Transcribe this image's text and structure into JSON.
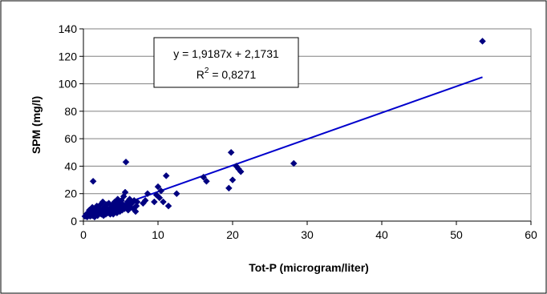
{
  "chart_data": {
    "type": "scatter",
    "xlabel": "Tot-P (microgram/liter)",
    "ylabel": "SPM (mg/l)",
    "xlim": [
      0,
      60
    ],
    "ylim": [
      0,
      140
    ],
    "xticks": [
      "0",
      "10",
      "20",
      "30",
      "40",
      "50",
      "60"
    ],
    "yticks": [
      "0",
      "20",
      "40",
      "60",
      "80",
      "100",
      "120",
      "140"
    ],
    "grid": "horizontal",
    "legend": "none",
    "marker_color": "#000080",
    "trendline_color": "#0000CC",
    "trendline": {
      "slope": 1.9187,
      "intercept": 2.1731,
      "equation_text": "y = 1,9187x + 2,1731",
      "r2_prefix": "R",
      "r2_sup": "2",
      "r2_suffix": " = 0,8271"
    },
    "points": [
      [
        0.2,
        3.5
      ],
      [
        0.4,
        5
      ],
      [
        0.5,
        3
      ],
      [
        0.6,
        6
      ],
      [
        0.7,
        4
      ],
      [
        0.8,
        8
      ],
      [
        0.9,
        3.5
      ],
      [
        1.0,
        5
      ],
      [
        1.1,
        7
      ],
      [
        1.2,
        4
      ],
      [
        1.2,
        10
      ],
      [
        1.3,
        29
      ],
      [
        1.4,
        6
      ],
      [
        1.5,
        3
      ],
      [
        1.6,
        8
      ],
      [
        1.7,
        5
      ],
      [
        1.8,
        11
      ],
      [
        1.9,
        4
      ],
      [
        2.0,
        7
      ],
      [
        2.1,
        9
      ],
      [
        2.2,
        6
      ],
      [
        2.3,
        12
      ],
      [
        2.4,
        5
      ],
      [
        2.5,
        8
      ],
      [
        2.6,
        14
      ],
      [
        2.7,
        4
      ],
      [
        2.8,
        10
      ],
      [
        2.9,
        7
      ],
      [
        3.0,
        5
      ],
      [
        3.1,
        12
      ],
      [
        3.2,
        9
      ],
      [
        3.3,
        6
      ],
      [
        3.4,
        13
      ],
      [
        3.5,
        8
      ],
      [
        3.6,
        5
      ],
      [
        3.7,
        10
      ],
      [
        3.8,
        7
      ],
      [
        3.9,
        12
      ],
      [
        4.0,
        5
      ],
      [
        4.1,
        9
      ],
      [
        4.2,
        14
      ],
      [
        4.3,
        7
      ],
      [
        4.4,
        11
      ],
      [
        4.5,
        6
      ],
      [
        4.6,
        16
      ],
      [
        4.7,
        9
      ],
      [
        4.8,
        13
      ],
      [
        4.9,
        7
      ],
      [
        5.0,
        10
      ],
      [
        5.1,
        15
      ],
      [
        5.2,
        8
      ],
      [
        5.3,
        12
      ],
      [
        5.4,
        18
      ],
      [
        5.5,
        9
      ],
      [
        5.6,
        21
      ],
      [
        5.7,
        43
      ],
      [
        5.8,
        11
      ],
      [
        5.9,
        14
      ],
      [
        6.0,
        8
      ],
      [
        6.1,
        12
      ],
      [
        6.2,
        16
      ],
      [
        6.3,
        10
      ],
      [
        6.5,
        13
      ],
      [
        6.7,
        9
      ],
      [
        6.8,
        15
      ],
      [
        7.0,
        7
      ],
      [
        7.1,
        11
      ],
      [
        7.2,
        14
      ],
      [
        8.0,
        13
      ],
      [
        8.3,
        15
      ],
      [
        8.6,
        20
      ],
      [
        9.5,
        14
      ],
      [
        9.8,
        19
      ],
      [
        10.0,
        25
      ],
      [
        10.2,
        17
      ],
      [
        10.4,
        22
      ],
      [
        10.7,
        14
      ],
      [
        11.1,
        33
      ],
      [
        11.4,
        11
      ],
      [
        12.5,
        20
      ],
      [
        16.1,
        32
      ],
      [
        16.5,
        29
      ],
      [
        19.5,
        24
      ],
      [
        19.8,
        50
      ],
      [
        20.0,
        30
      ],
      [
        20.5,
        40
      ],
      [
        20.8,
        38
      ],
      [
        21.1,
        36
      ],
      [
        28.2,
        42
      ],
      [
        53.5,
        131
      ]
    ]
  }
}
